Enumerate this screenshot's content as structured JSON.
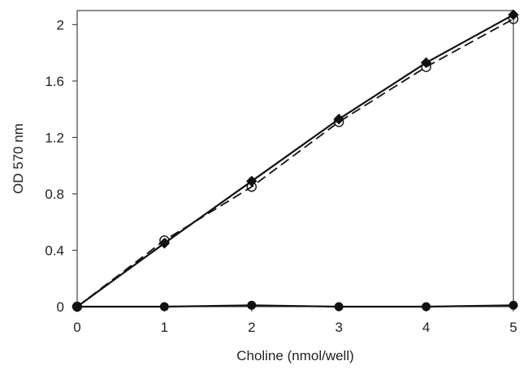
{
  "chart_data": {
    "type": "line",
    "xlabel": "Choline  (nmol/well)",
    "ylabel": "OD 570 nm",
    "xlim": [
      0,
      5
    ],
    "ylim": [
      0,
      2.1
    ],
    "xticks": [
      "0",
      "1",
      "2",
      "3",
      "4",
      "5"
    ],
    "yticks": [
      "0",
      "0.4",
      "0.8",
      "1.2",
      "1.6",
      "2"
    ],
    "grid": false,
    "legend": "none",
    "series": [
      {
        "line_style": "solid",
        "marker": "filled-diamond",
        "color": "#111111",
        "x": [
          0,
          1,
          2,
          3,
          4,
          5
        ],
        "y": [
          0.0,
          0.45,
          0.89,
          1.33,
          1.73,
          2.07
        ]
      },
      {
        "line_style": "dashed",
        "marker": "open-circle",
        "color": "#111111",
        "x": [
          0,
          1,
          2,
          3,
          4,
          5
        ],
        "y": [
          0.0,
          0.47,
          0.85,
          1.31,
          1.7,
          2.04
        ]
      },
      {
        "line_style": "solid",
        "marker": "filled-circle",
        "color": "#111111",
        "x": [
          0,
          1,
          2,
          3,
          4,
          5
        ],
        "y": [
          0.0,
          0.0,
          0.01,
          0.0,
          0.0,
          0.01
        ]
      }
    ]
  }
}
